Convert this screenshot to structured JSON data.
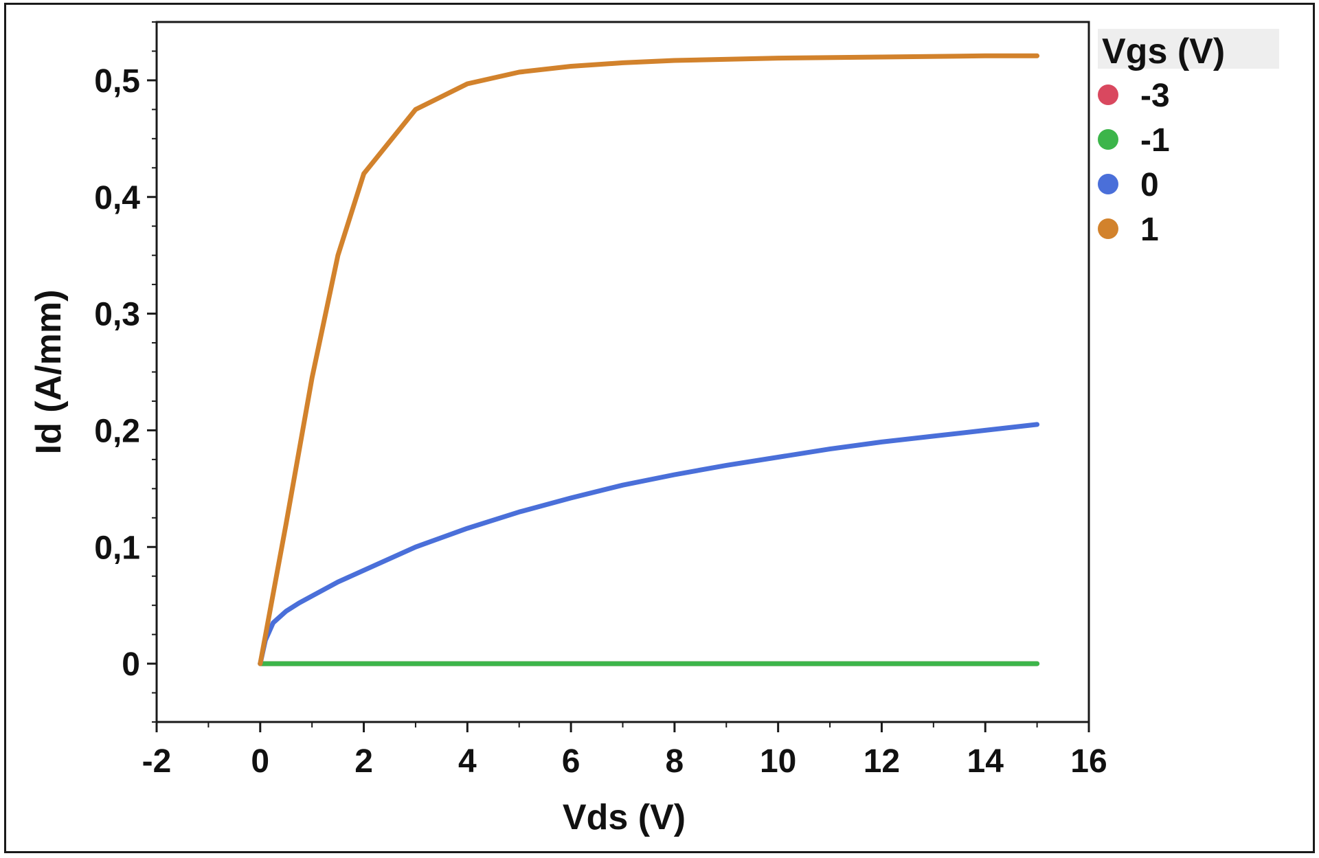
{
  "chart_data": {
    "type": "line",
    "xlabel": "Vds (V)",
    "ylabel": "Id (A/mm)",
    "xlim": [
      -2,
      16
    ],
    "ylim": [
      -0.05,
      0.55
    ],
    "x_ticks": [
      -2,
      0,
      2,
      4,
      6,
      8,
      10,
      12,
      14,
      16
    ],
    "x_tick_labels": [
      "-2",
      "0",
      "2",
      "4",
      "6",
      "8",
      "10",
      "12",
      "14",
      "16"
    ],
    "y_ticks": [
      0,
      0.1,
      0.2,
      0.3,
      0.4,
      0.5
    ],
    "y_tick_labels": [
      "0",
      "0,1",
      "0,2",
      "0,3",
      "0,4",
      "0,5"
    ],
    "grid": false,
    "legend": {
      "title": "Vgs (V)",
      "placement": "right-top"
    },
    "series": [
      {
        "name": "-3",
        "color": "#d9485f",
        "x": [
          0,
          15
        ],
        "y": [
          0,
          0
        ]
      },
      {
        "name": "-1",
        "color": "#3cb54a",
        "x": [
          0,
          15
        ],
        "y": [
          0,
          0
        ]
      },
      {
        "name": "0",
        "color": "#4a6fd9",
        "x": [
          0,
          0.1,
          0.25,
          0.5,
          0.75,
          1,
          1.5,
          2,
          3,
          4,
          5,
          6,
          7,
          8,
          9,
          10,
          11,
          12,
          13,
          14,
          15
        ],
        "y": [
          0,
          0.02,
          0.035,
          0.045,
          0.052,
          0.058,
          0.07,
          0.08,
          0.1,
          0.116,
          0.13,
          0.142,
          0.153,
          0.162,
          0.17,
          0.177,
          0.184,
          0.19,
          0.195,
          0.2,
          0.205
        ]
      },
      {
        "name": "1",
        "color": "#d2822c",
        "x": [
          0,
          0.5,
          1,
          1.5,
          2,
          3,
          4,
          5,
          6,
          7,
          8,
          10,
          12,
          14,
          15
        ],
        "y": [
          0,
          0.12,
          0.245,
          0.35,
          0.42,
          0.475,
          0.497,
          0.507,
          0.512,
          0.515,
          0.517,
          0.519,
          0.52,
          0.521,
          0.521
        ]
      }
    ]
  }
}
